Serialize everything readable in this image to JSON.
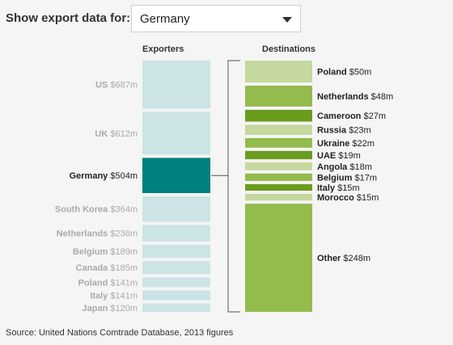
{
  "selector": {
    "label": "Show export data for:",
    "value": "Germany"
  },
  "columns": {
    "exporters": "Exporters",
    "destinations": "Destinations"
  },
  "source": "Source: United Nations Comtrade Database, 2013 figures",
  "colors": {
    "exporter_default": "#cce4e5",
    "exporter_selected": "#008080",
    "exporter_label_faded": "#aaaaaa",
    "dest_light": "#c5d89d",
    "dest_mid": "#94bb4d",
    "dest_dark": "#6a9c1e"
  },
  "chart_data": {
    "type": "bar",
    "exporters": {
      "categories": [
        "US",
        "UK",
        "Germany",
        "South Korea",
        "Netherlands",
        "Belgium",
        "Canada",
        "Poland",
        "Italy",
        "Japan"
      ],
      "values": [
        687,
        612,
        504,
        364,
        236,
        189,
        185,
        141,
        141,
        120
      ],
      "labels": [
        "$687m",
        "$612m",
        "$504m",
        "$364m",
        "$236m",
        "$189m",
        "$185m",
        "$141m",
        "$141m",
        "$120m"
      ],
      "selected": "Germany",
      "unit": "$m"
    },
    "destinations": {
      "categories": [
        "Poland",
        "Netherlands",
        "Cameroon",
        "Russia",
        "Ukraine",
        "UAE",
        "Angola",
        "Belgium",
        "Italy",
        "Morocco",
        "Other"
      ],
      "values": [
        50,
        48,
        27,
        23,
        22,
        19,
        18,
        17,
        15,
        15,
        248
      ],
      "labels": [
        "$50m",
        "$48m",
        "$27m",
        "$23m",
        "$22m",
        "$19m",
        "$18m",
        "$17m",
        "$15m",
        "$15m",
        "$248m"
      ],
      "shades": [
        "light",
        "mid",
        "dark",
        "light",
        "mid",
        "dark",
        "light",
        "mid",
        "dark",
        "light",
        "mid"
      ],
      "unit": "$m"
    }
  }
}
